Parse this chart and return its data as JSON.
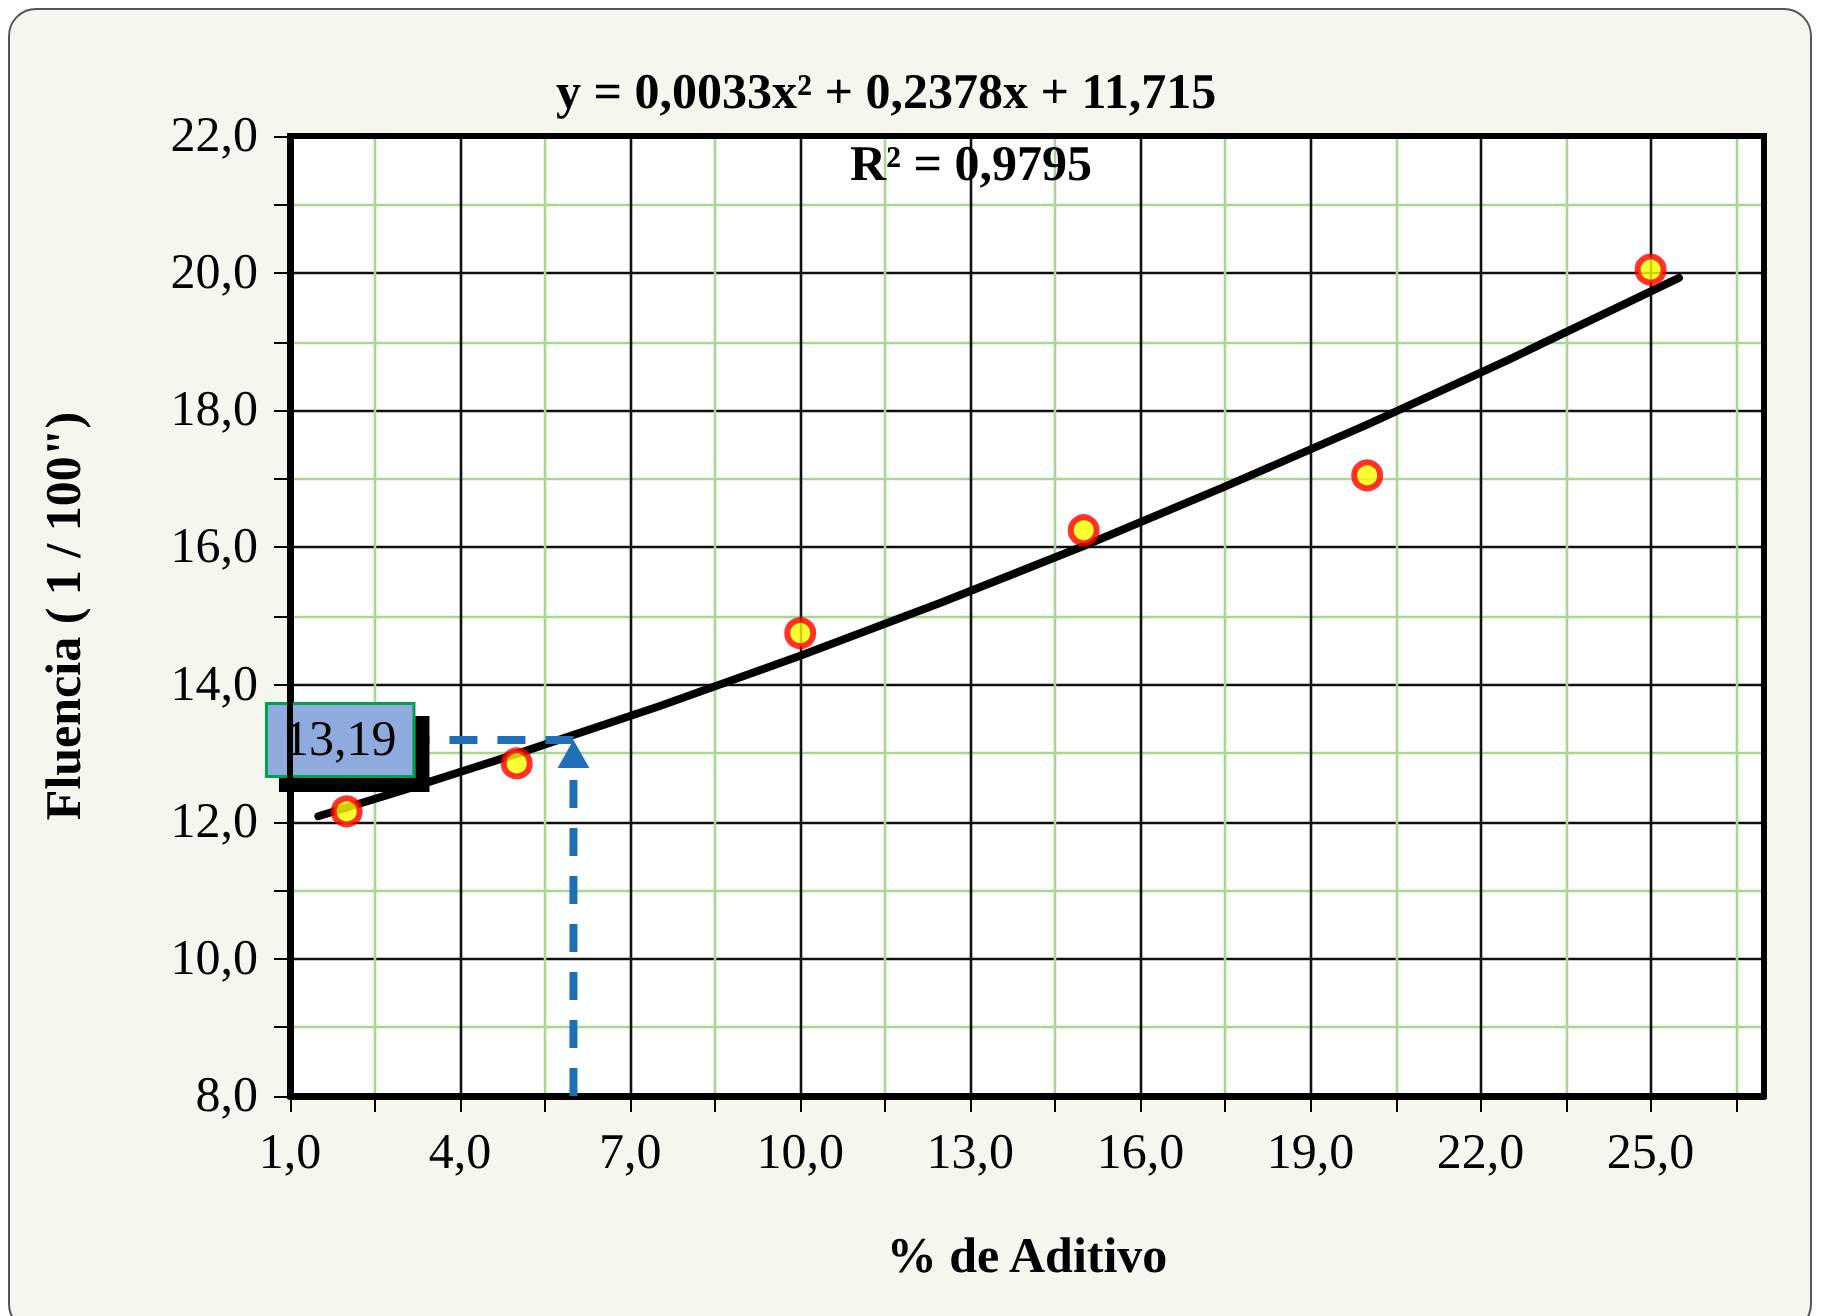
{
  "chart_data": {
    "type": "scatter",
    "xlabel": "% de Aditivo",
    "ylabel": "Fluencia ( 1 / 100\")",
    "annotations": [
      "y = 0,0033x² + 0,2378x + 11,715",
      "R² = 0,9795",
      {
        "text": "13,19",
        "x": 6,
        "y": 13.19
      }
    ],
    "series": [
      {
        "x": [
          2,
          5,
          10,
          15,
          20,
          25
        ],
        "values": [
          12.15,
          12.85,
          14.75,
          16.25,
          17.05,
          20.05
        ],
        "color": "#ffff00",
        "marker": "circle"
      },
      {
        "type": "line",
        "x": [
          1.5,
          3,
          5,
          7.5,
          10,
          12.5,
          15,
          17.5,
          20,
          22.5,
          25.5
        ],
        "values": [
          12.08,
          12.46,
          12.99,
          13.68,
          14.42,
          15.2,
          16.02,
          16.89,
          17.79,
          18.74,
          19.93
        ],
        "color": "#000000",
        "marker": "none"
      }
    ],
    "xlim": [
      1,
      27
    ],
    "xticks": [
      {
        "value": 1,
        "label": "1,0"
      },
      {
        "value": 2.5,
        "label": null
      },
      {
        "value": 4,
        "label": "4,0"
      },
      {
        "value": 5.5,
        "label": null
      },
      {
        "value": 7,
        "label": "7,0"
      },
      {
        "value": 8.5,
        "label": null
      },
      {
        "value": 10,
        "label": "10,0"
      },
      {
        "value": 11.5,
        "label": null
      },
      {
        "value": 13,
        "label": "13,0"
      },
      {
        "value": 14.5,
        "label": null
      },
      {
        "value": 16,
        "label": "16,0"
      },
      {
        "value": 17.5,
        "label": null
      },
      {
        "value": 19,
        "label": "19,0"
      },
      {
        "value": 20.5,
        "label": null
      },
      {
        "value": 22,
        "label": "22,0"
      },
      {
        "value": 23.5,
        "label": null
      },
      {
        "value": 25,
        "label": "25,0"
      },
      {
        "value": 26.5,
        "label": null
      }
    ],
    "ylim": [
      8,
      22
    ],
    "yticks": [
      {
        "value": 8,
        "label": "8,0"
      },
      {
        "value": 9,
        "label": null
      },
      {
        "value": 10,
        "label": "10,0"
      },
      {
        "value": 11,
        "label": null
      },
      {
        "value": 12,
        "label": "12,0"
      },
      {
        "value": 13,
        "label": null
      },
      {
        "value": 14,
        "label": "14,0"
      },
      {
        "value": 15,
        "label": null
      },
      {
        "value": 16,
        "label": "16,0"
      },
      {
        "value": 17,
        "label": null
      },
      {
        "value": 18,
        "label": "18,0"
      },
      {
        "value": 19,
        "label": null
      },
      {
        "value": 20,
        "label": "20,0"
      },
      {
        "value": 21,
        "label": null
      },
      {
        "value": 22,
        "label": "22,0"
      }
    ],
    "grid": true
  }
}
